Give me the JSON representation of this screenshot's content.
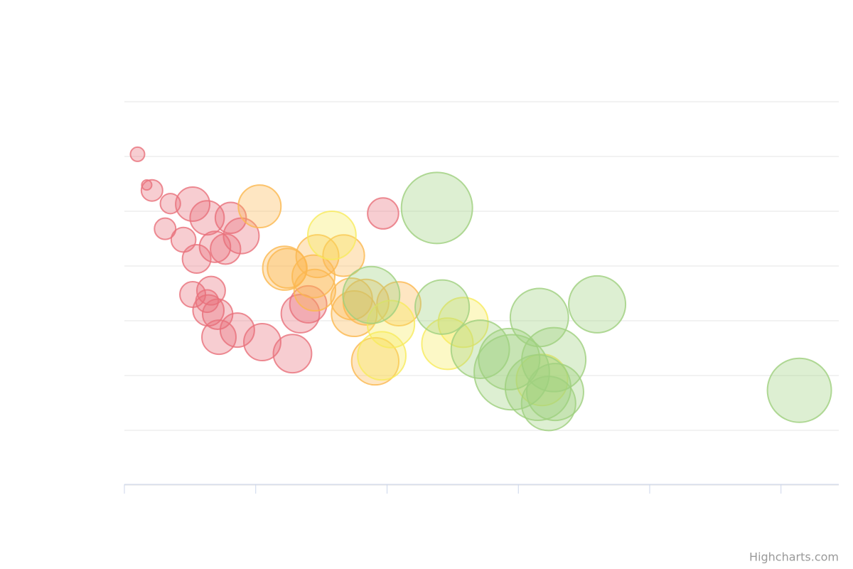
{
  "chart_data": {
    "type": "bubble",
    "credits": "Highcharts.com",
    "xlim": [
      0,
      5.44
    ],
    "xticks": [
      0,
      1,
      2,
      3,
      4,
      5
    ],
    "ylim": [
      0,
      7
    ],
    "yticks": [
      0,
      1,
      2,
      3,
      4,
      5,
      6,
      7
    ],
    "grid": true,
    "series": [
      {
        "color": "#e8707a",
        "x": [
          0.1,
          0.17,
          0.21,
          0.35,
          0.52,
          0.63,
          0.81,
          0.89,
          0.31,
          0.45,
          0.69,
          0.77,
          0.55,
          0.52,
          0.66,
          0.63,
          0.64,
          0.71,
          0.86,
          0.72,
          1.05,
          1.28,
          1.34,
          1.4,
          1.97
        ],
        "values": [
          6.04,
          5.48,
          5.38,
          5.14,
          5.13,
          4.88,
          4.88,
          4.55,
          4.68,
          4.48,
          4.35,
          4.31,
          4.13,
          3.48,
          3.55,
          3.36,
          3.19,
          3.12,
          2.83,
          2.7,
          2.61,
          2.4,
          3.13,
          3.3,
          4.96
        ],
        "size": [
          4,
          2,
          9,
          8,
          23,
          23,
          19,
          25,
          9,
          12,
          19,
          18,
          16,
          13,
          16,
          10,
          19,
          18,
          23,
          23,
          27,
          29,
          29,
          27,
          19
        ]
      },
      {
        "color": "#fbb84f",
        "x": [
          1.03,
          1.22,
          1.24,
          1.47,
          1.67,
          1.44,
          1.45,
          1.73,
          1.84,
          2.09,
          1.75,
          1.91
        ],
        "values": [
          5.09,
          3.96,
          3.96,
          4.18,
          4.19,
          3.81,
          3.56,
          3.4,
          3.34,
          3.31,
          3.13,
          2.26
        ],
        "size": [
          36,
          38,
          31,
          36,
          34,
          36,
          34,
          34,
          41,
          38,
          41,
          44
        ]
      },
      {
        "color": "#f7eb5c",
        "x": [
          1.58,
          2.03,
          1.96,
          2.46,
          2.58,
          3.18
        ],
        "values": [
          4.56,
          2.94,
          2.36,
          2.58,
          2.97,
          1.92
        ],
        "size": [
          46,
          44,
          46,
          52,
          49,
          52
        ]
      },
      {
        "color": "#9fd07e",
        "x": [
          2.38,
          1.88,
          2.42,
          2.71,
          2.95,
          2.93,
          3.15,
          3.27,
          3.28,
          3.23,
          3.16,
          3.6,
          5.14
        ],
        "values": [
          5.06,
          3.47,
          3.25,
          2.48,
          2.06,
          2.3,
          1.78,
          2.29,
          1.7,
          1.49,
          3.06,
          3.3,
          1.73
        ],
        "size": [
          100,
          64,
          58,
          67,
          112,
          74,
          85,
          81,
          64,
          58,
          67,
          64,
          81
        ]
      }
    ]
  }
}
